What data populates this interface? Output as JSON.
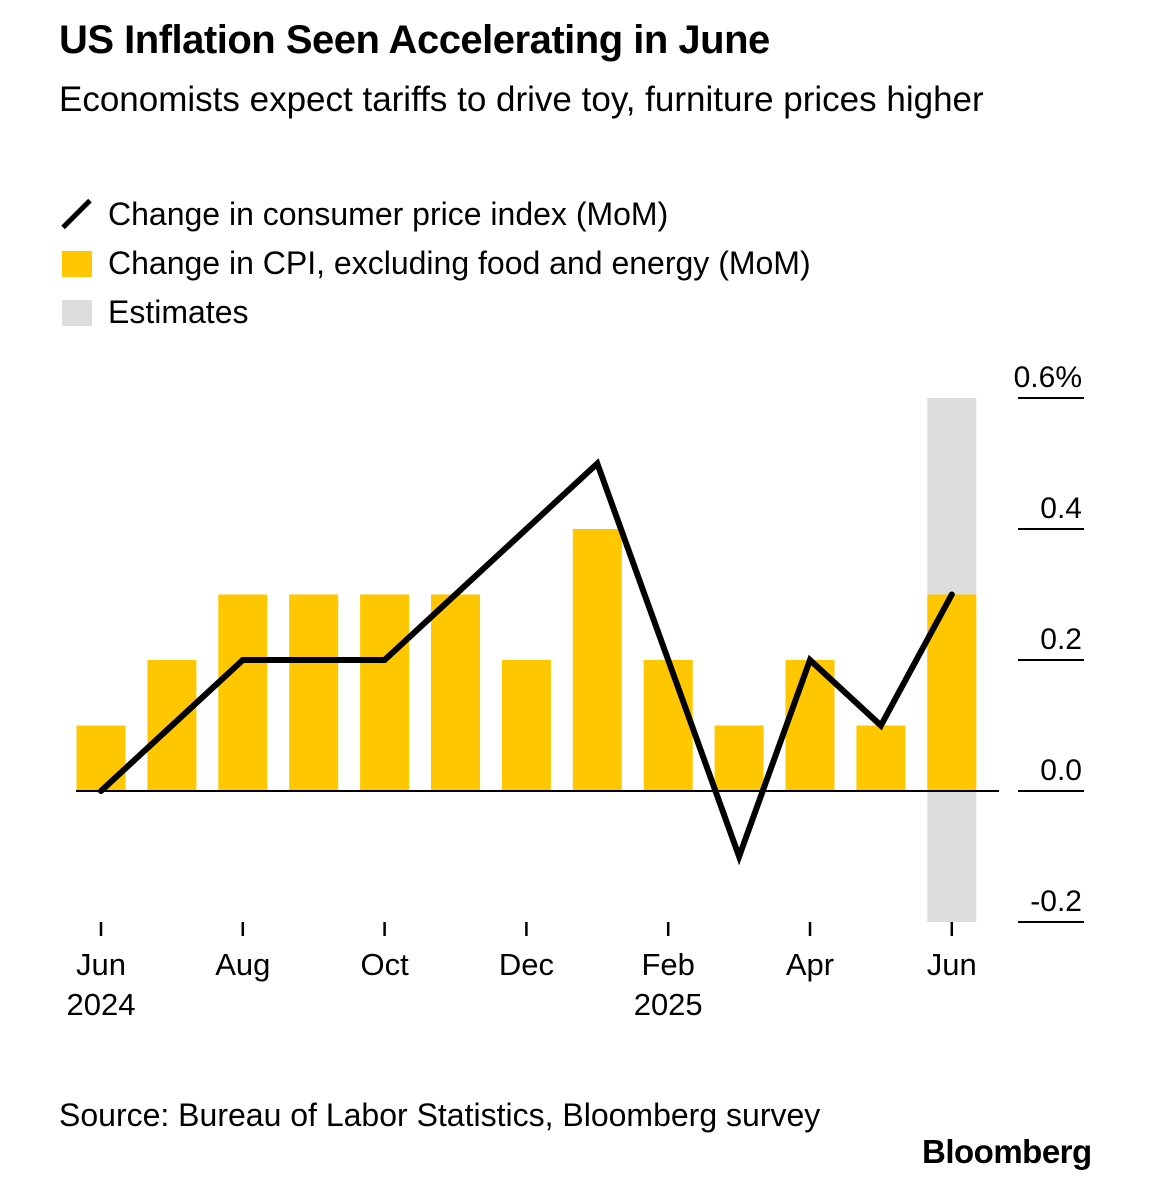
{
  "header": {
    "title": "US Inflation Seen Accelerating in June",
    "subtitle": "Economists expect tariffs to drive toy, furniture prices higher"
  },
  "legend": {
    "line_label": "Change in consumer price index (MoM)",
    "bar_label": "Change in CPI, excluding food and energy (MoM)",
    "estimate_label": "Estimates"
  },
  "chart_data": {
    "type": "bar",
    "title": "US Inflation Seen Accelerating in June",
    "subtitle": "Economists expect tariffs to drive toy, furniture prices higher",
    "xlabel": "",
    "ylabel": "",
    "months": [
      "Jun 2024",
      "Jul 2024",
      "Aug 2024",
      "Sep 2024",
      "Oct 2024",
      "Nov 2024",
      "Dec 2024",
      "Jan 2025",
      "Feb 2025",
      "Mar 2025",
      "Apr 2025",
      "May 2025",
      "Jun 2025"
    ],
    "series": [
      {
        "name": "Change in CPI, excluding food and energy (MoM)",
        "type": "bar",
        "color": "#FFC700",
        "values": [
          0.1,
          0.2,
          0.3,
          0.3,
          0.3,
          0.3,
          0.2,
          0.4,
          0.2,
          0.1,
          0.2,
          0.1,
          0.3
        ]
      },
      {
        "name": "Change in consumer price index (MoM)",
        "type": "line",
        "color": "#000000",
        "values": [
          0.0,
          0.1,
          0.2,
          0.2,
          0.2,
          0.3,
          0.4,
          0.5,
          0.2,
          -0.1,
          0.2,
          0.1,
          0.3
        ]
      }
    ],
    "estimate_months": [
      "Jun 2025"
    ],
    "estimate_color": "#DDDDDD",
    "ylim": [
      -0.2,
      0.6
    ],
    "yticks": [
      {
        "value": 0.6,
        "label": "0.6%"
      },
      {
        "value": 0.4,
        "label": "0.4"
      },
      {
        "value": 0.2,
        "label": "0.2"
      },
      {
        "value": 0.0,
        "label": "0.0"
      },
      {
        "value": -0.2,
        "label": "-0.2"
      }
    ],
    "xticks": [
      {
        "index": 0,
        "label": "Jun",
        "sublabel": "2024"
      },
      {
        "index": 2,
        "label": "Aug",
        "sublabel": ""
      },
      {
        "index": 4,
        "label": "Oct",
        "sublabel": ""
      },
      {
        "index": 6,
        "label": "Dec",
        "sublabel": ""
      },
      {
        "index": 8,
        "label": "Feb",
        "sublabel": "2025"
      },
      {
        "index": 10,
        "label": "Apr",
        "sublabel": ""
      },
      {
        "index": 12,
        "label": "Jun",
        "sublabel": ""
      }
    ],
    "grid": false,
    "legend_position": "top-left"
  },
  "footer": {
    "source": "Source: Bureau of Labor Statistics, Bloomberg survey",
    "brand": "Bloomberg"
  }
}
